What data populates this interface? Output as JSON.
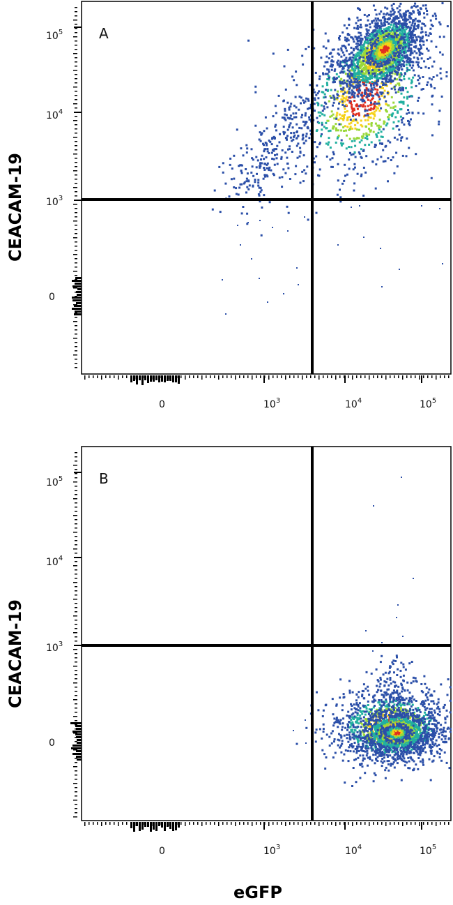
{
  "chart_data": [
    {
      "type": "scatter",
      "subtype": "flow-cytometry-density-plot",
      "panel_label": "A",
      "xlabel": "eGFP",
      "ylabel": "CEACAM-19",
      "x_scale": "biexponential",
      "y_scale": "biexponential",
      "x_ticks": [
        "0",
        "10^3",
        "10^4",
        "10^5"
      ],
      "y_ticks": [
        "10^5",
        "10^4",
        "10^3",
        "0"
      ],
      "quadrant_gate": {
        "x": 3500,
        "y": 1000
      },
      "populations": [
        {
          "name": "",
          "center": {
            "x": 25000,
            "y": 60000
          },
          "density": "high",
          "color_scale": "blue-green-yellow-red"
        },
        {
          "name": "",
          "region": "diagonal tail from (1000, 1000) to (10000, 20000)",
          "density": "low"
        }
      ]
    },
    {
      "type": "scatter",
      "subtype": "flow-cytometry-density-plot",
      "panel_label": "B",
      "xlabel": "eGFP",
      "ylabel": "CEACAM-19",
      "x_scale": "biexponential",
      "y_scale": "biexponential",
      "x_ticks": [
        "0",
        "10^3",
        "10^4",
        "10^5"
      ],
      "y_ticks": [
        "10^5",
        "10^4",
        "10^3",
        "0"
      ],
      "quadrant_gate": {
        "x": 3500,
        "y": 1000
      },
      "populations": [
        {
          "name": "",
          "center": {
            "x": 35000,
            "y": 0
          },
          "density": "high",
          "color_scale": "blue-green-yellow-red"
        }
      ]
    }
  ],
  "labels": {
    "panel_a": "A",
    "panel_b": "B",
    "ylabel": "CEACAM-19",
    "xlabel": "eGFP",
    "tick_zero": "0",
    "tick_base": "10",
    "exp3": "3",
    "exp4": "4",
    "exp5": "5"
  },
  "colors": {
    "density_low": "#2b4fa8",
    "density_mid": "#22b0a0",
    "density_midhigh": "#9ad83a",
    "density_high": "#f5d21a",
    "density_peak": "#e03020",
    "gate_line": "#000000"
  }
}
